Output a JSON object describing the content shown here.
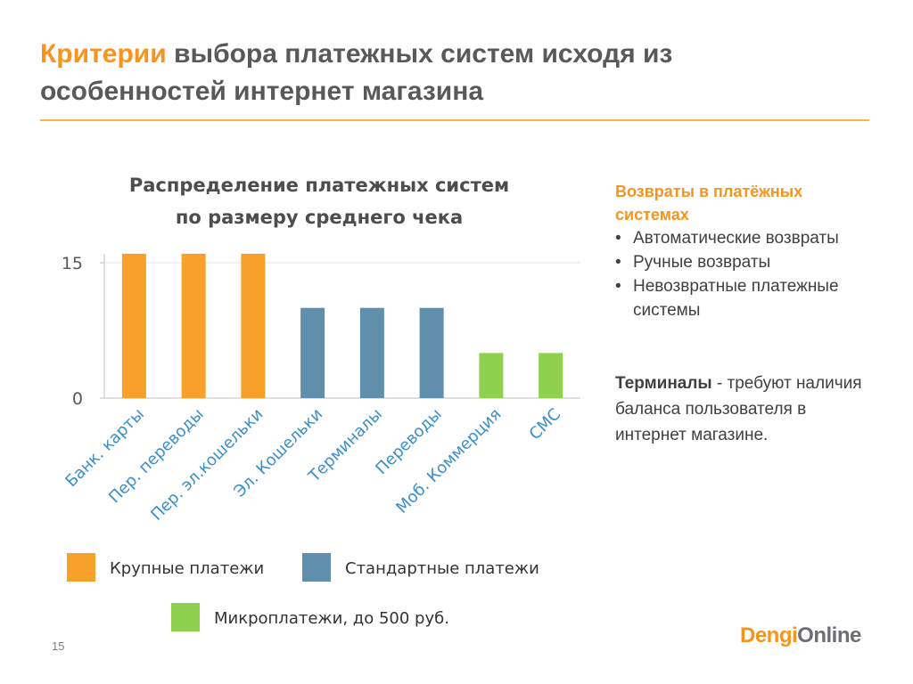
{
  "header": {
    "highlight": "Критерии",
    "line1": "выбора платежных систем исходя из",
    "line2": "особенностей интернет магазина"
  },
  "chart_data": {
    "type": "bar",
    "title_lines": [
      "Распределение платежных систем",
      "по размеру среднего чека"
    ],
    "categories": [
      "Банк. карты",
      "Пер. переводы",
      "Пер. эл.кошельки",
      "Эл. Кошельки",
      "Терминалы",
      "Переводы",
      "Моб. Коммерция",
      "СМС"
    ],
    "values": [
      16,
      16,
      16,
      10,
      10,
      10,
      5,
      5
    ],
    "colors": [
      "#f7a02a",
      "#f7a02a",
      "#f7a02a",
      "#5f8fab",
      "#5f8fab",
      "#5f8fab",
      "#8fd14f",
      "#8fd14f"
    ],
    "ylim": [
      0,
      16
    ],
    "yticks": [
      0,
      15
    ],
    "grid": true,
    "legend": [
      {
        "name": "Крупные платежи",
        "color": "#f7a02a"
      },
      {
        "name": "Стандартные  платежи",
        "color": "#5f8fab"
      },
      {
        "name": "Микроплатежи,  до 500 руб.",
        "color": "#8fd14f"
      }
    ]
  },
  "sidebar": {
    "heading": "Возвраты в платёжных системах",
    "items": [
      "Автоматические возвраты",
      "Ручные возвраты",
      "Невозвратные платежные системы"
    ],
    "terminals_bold": "Терминалы",
    "terminals_text": " -  требуют наличия баланса пользователя в интернет магазине."
  },
  "footer": {
    "page": "15",
    "logo_a": "Dengi",
    "logo_b": "Online"
  }
}
